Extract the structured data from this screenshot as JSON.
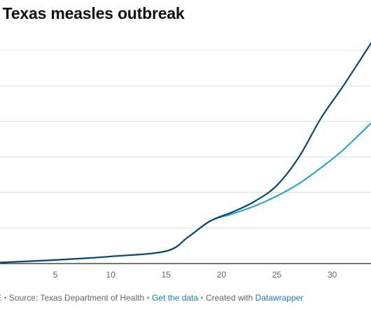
{
  "title": "Texas measles outbreak",
  "title_fragment": ":",
  "footer": {
    "prefix": "E",
    "source_text": "Source: Texas Department of Health",
    "get_data_link": "Get the data",
    "created_with_text": "Created with",
    "datawrapper_link": "Datawrapper",
    "separator": "•"
  },
  "colors": {
    "series_dark": "#0b4a6f",
    "series_light": "#2fa3cc",
    "grid": "#dcdcdc",
    "axis": "#222222",
    "link": "#1d81a2"
  },
  "chart_data": {
    "type": "line",
    "title": "Texas measles outbreak",
    "xlabel": "",
    "ylabel": "",
    "xlim": [
      0,
      33.5
    ],
    "ylim": [
      0,
      6
    ],
    "x_ticks": [
      5,
      10,
      15,
      20,
      25,
      30
    ],
    "y_gridlines": [
      1,
      2,
      3,
      4,
      5,
      6
    ],
    "grid": true,
    "series": [
      {
        "color": "#0b4a6f",
        "x": [
          0,
          5,
          10,
          15,
          17,
          19,
          21,
          23,
          25,
          27,
          29,
          31,
          33.5
        ],
        "y": [
          0.03,
          0.1,
          0.2,
          0.35,
          0.75,
          1.2,
          1.45,
          1.75,
          2.2,
          3.0,
          4.1,
          5.0,
          6.2
        ]
      },
      {
        "color": "#2fa3cc",
        "x": [
          0,
          5,
          10,
          15,
          17,
          19,
          21,
          23,
          25,
          27,
          29,
          31,
          33.5
        ],
        "y": [
          0.03,
          0.1,
          0.2,
          0.35,
          0.75,
          1.2,
          1.4,
          1.62,
          1.9,
          2.25,
          2.7,
          3.2,
          3.95
        ]
      }
    ]
  }
}
